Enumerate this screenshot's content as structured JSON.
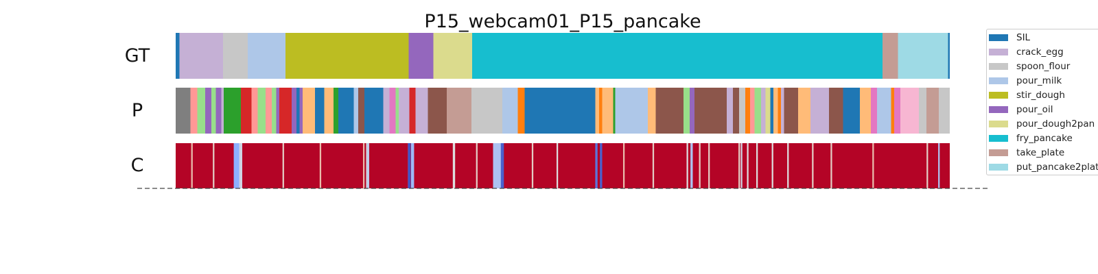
{
  "chart_data": {
    "type": "segmentation",
    "title": "P15_webcam01_P15_pancake",
    "rows": [
      "GT",
      "P",
      "C"
    ],
    "legend": [
      {
        "label": "SIL",
        "color": "#1f77b4"
      },
      {
        "label": "crack_egg",
        "color": "#c5b0d5"
      },
      {
        "label": "spoon_flour",
        "color": "#c7c7c7"
      },
      {
        "label": "pour_milk",
        "color": "#aec7e8"
      },
      {
        "label": "stir_dough",
        "color": "#bcbd22"
      },
      {
        "label": "pour_oil",
        "color": "#9467bd"
      },
      {
        "label": "pour_dough2pan",
        "color": "#dbdb8d"
      },
      {
        "label": "fry_pancake",
        "color": "#17becf"
      },
      {
        "label": "take_plate",
        "color": "#c49c94"
      },
      {
        "label": "put_pancake2plate",
        "color": "#9edae5"
      }
    ],
    "gt_segments": [
      {
        "start": 0.0,
        "end": 0.005,
        "color": "#1f77b4"
      },
      {
        "start": 0.005,
        "end": 0.061,
        "color": "#c5b0d5"
      },
      {
        "start": 0.061,
        "end": 0.093,
        "color": "#c7c7c7"
      },
      {
        "start": 0.093,
        "end": 0.142,
        "color": "#aec7e8"
      },
      {
        "start": 0.142,
        "end": 0.301,
        "color": "#bcbd22"
      },
      {
        "start": 0.301,
        "end": 0.333,
        "color": "#9467bd"
      },
      {
        "start": 0.333,
        "end": 0.383,
        "color": "#dbdb8d"
      },
      {
        "start": 0.383,
        "end": 0.913,
        "color": "#17becf"
      },
      {
        "start": 0.913,
        "end": 0.933,
        "color": "#c49c94"
      },
      {
        "start": 0.933,
        "end": 0.998,
        "color": "#9edae5"
      },
      {
        "start": 0.998,
        "end": 1.0,
        "color": "#1f77b4"
      }
    ],
    "pred_segments": [
      {
        "start": 0.0,
        "end": 0.019,
        "color": "#7f7f7f"
      },
      {
        "start": 0.019,
        "end": 0.028,
        "color": "#ff9896"
      },
      {
        "start": 0.028,
        "end": 0.038,
        "color": "#98df8a"
      },
      {
        "start": 0.038,
        "end": 0.046,
        "color": "#9467bd"
      },
      {
        "start": 0.046,
        "end": 0.052,
        "color": "#98df8a"
      },
      {
        "start": 0.052,
        "end": 0.059,
        "color": "#9467bd"
      },
      {
        "start": 0.059,
        "end": 0.062,
        "color": "#c5b0d5"
      },
      {
        "start": 0.062,
        "end": 0.084,
        "color": "#2ca02c"
      },
      {
        "start": 0.084,
        "end": 0.098,
        "color": "#d62728"
      },
      {
        "start": 0.098,
        "end": 0.106,
        "color": "#ff9896"
      },
      {
        "start": 0.106,
        "end": 0.116,
        "color": "#98df8a"
      },
      {
        "start": 0.116,
        "end": 0.124,
        "color": "#ff9896"
      },
      {
        "start": 0.124,
        "end": 0.13,
        "color": "#98df8a"
      },
      {
        "start": 0.13,
        "end": 0.134,
        "color": "#9467bd"
      },
      {
        "start": 0.134,
        "end": 0.15,
        "color": "#d62728"
      },
      {
        "start": 0.15,
        "end": 0.156,
        "color": "#9467bd"
      },
      {
        "start": 0.156,
        "end": 0.16,
        "color": "#1f77b4"
      },
      {
        "start": 0.16,
        "end": 0.164,
        "color": "#9467bd"
      },
      {
        "start": 0.164,
        "end": 0.18,
        "color": "#ffbb78"
      },
      {
        "start": 0.18,
        "end": 0.192,
        "color": "#1f77b4"
      },
      {
        "start": 0.192,
        "end": 0.204,
        "color": "#ffbb78"
      },
      {
        "start": 0.204,
        "end": 0.21,
        "color": "#2ca02c"
      },
      {
        "start": 0.21,
        "end": 0.23,
        "color": "#1f77b4"
      },
      {
        "start": 0.23,
        "end": 0.236,
        "color": "#aec7e8"
      },
      {
        "start": 0.236,
        "end": 0.244,
        "color": "#8c564b"
      },
      {
        "start": 0.244,
        "end": 0.268,
        "color": "#1f77b4"
      },
      {
        "start": 0.268,
        "end": 0.276,
        "color": "#c5b0d5"
      },
      {
        "start": 0.276,
        "end": 0.284,
        "color": "#e377c2"
      },
      {
        "start": 0.284,
        "end": 0.288,
        "color": "#98df8a"
      },
      {
        "start": 0.288,
        "end": 0.302,
        "color": "#c5b0d5"
      },
      {
        "start": 0.302,
        "end": 0.31,
        "color": "#d62728"
      },
      {
        "start": 0.31,
        "end": 0.326,
        "color": "#c5b0d5"
      },
      {
        "start": 0.326,
        "end": 0.35,
        "color": "#8c564b"
      },
      {
        "start": 0.35,
        "end": 0.382,
        "color": "#c49c94"
      },
      {
        "start": 0.382,
        "end": 0.422,
        "color": "#c7c7c7"
      },
      {
        "start": 0.422,
        "end": 0.442,
        "color": "#aec7e8"
      },
      {
        "start": 0.442,
        "end": 0.451,
        "color": "#ff7f0e"
      },
      {
        "start": 0.451,
        "end": 0.542,
        "color": "#1f77b4"
      },
      {
        "start": 0.542,
        "end": 0.547,
        "color": "#ffbb78"
      },
      {
        "start": 0.547,
        "end": 0.551,
        "color": "#ff7f0e"
      },
      {
        "start": 0.551,
        "end": 0.565,
        "color": "#ffbb78"
      },
      {
        "start": 0.565,
        "end": 0.568,
        "color": "#2ca02c"
      },
      {
        "start": 0.568,
        "end": 0.61,
        "color": "#aec7e8"
      },
      {
        "start": 0.61,
        "end": 0.62,
        "color": "#ffbb78"
      },
      {
        "start": 0.62,
        "end": 0.656,
        "color": "#8c564b"
      },
      {
        "start": 0.656,
        "end": 0.664,
        "color": "#98df8a"
      },
      {
        "start": 0.664,
        "end": 0.67,
        "color": "#9467bd"
      },
      {
        "start": 0.67,
        "end": 0.712,
        "color": "#8c564b"
      },
      {
        "start": 0.712,
        "end": 0.72,
        "color": "#c5b0d5"
      },
      {
        "start": 0.72,
        "end": 0.728,
        "color": "#8c564b"
      },
      {
        "start": 0.728,
        "end": 0.736,
        "color": "#c7c7c7"
      },
      {
        "start": 0.736,
        "end": 0.742,
        "color": "#ff7f0e"
      },
      {
        "start": 0.742,
        "end": 0.748,
        "color": "#ff9896"
      },
      {
        "start": 0.748,
        "end": 0.756,
        "color": "#98df8a"
      },
      {
        "start": 0.756,
        "end": 0.762,
        "color": "#c5b0d5"
      },
      {
        "start": 0.762,
        "end": 0.768,
        "color": "#dbdb8d"
      },
      {
        "start": 0.768,
        "end": 0.772,
        "color": "#1f77b4"
      },
      {
        "start": 0.772,
        "end": 0.778,
        "color": "#ffbb78"
      },
      {
        "start": 0.778,
        "end": 0.782,
        "color": "#ff7f0e"
      },
      {
        "start": 0.782,
        "end": 0.786,
        "color": "#c5b0d5"
      },
      {
        "start": 0.786,
        "end": 0.804,
        "color": "#8c564b"
      },
      {
        "start": 0.804,
        "end": 0.82,
        "color": "#ffbb78"
      },
      {
        "start": 0.82,
        "end": 0.844,
        "color": "#c5b0d5"
      },
      {
        "start": 0.844,
        "end": 0.862,
        "color": "#8c564b"
      },
      {
        "start": 0.862,
        "end": 0.884,
        "color": "#1f77b4"
      },
      {
        "start": 0.884,
        "end": 0.898,
        "color": "#ffbb78"
      },
      {
        "start": 0.898,
        "end": 0.906,
        "color": "#e377c2"
      },
      {
        "start": 0.906,
        "end": 0.924,
        "color": "#aec7e8"
      },
      {
        "start": 0.924,
        "end": 0.928,
        "color": "#ff7f0e"
      },
      {
        "start": 0.928,
        "end": 0.936,
        "color": "#e377c2"
      },
      {
        "start": 0.936,
        "end": 0.96,
        "color": "#f7b6d2"
      },
      {
        "start": 0.96,
        "end": 0.97,
        "color": "#c7c7c7"
      },
      {
        "start": 0.97,
        "end": 0.986,
        "color": "#c49c94"
      },
      {
        "start": 0.986,
        "end": 1.0,
        "color": "#c7c7c7"
      }
    ],
    "confidence_dips": [
      {
        "at": 0.02,
        "width": 0.002,
        "value": 0.6
      },
      {
        "at": 0.048,
        "width": 0.002,
        "value": 0.55
      },
      {
        "at": 0.075,
        "width": 0.009,
        "value": 0.25
      },
      {
        "at": 0.082,
        "width": 0.004,
        "value": 0.45
      },
      {
        "at": 0.138,
        "width": 0.002,
        "value": 0.55
      },
      {
        "at": 0.186,
        "width": 0.002,
        "value": 0.6
      },
      {
        "at": 0.242,
        "width": 0.002,
        "value": 0.6
      },
      {
        "at": 0.246,
        "width": 0.002,
        "value": 0.5
      },
      {
        "at": 0.247,
        "width": 0.003,
        "value": 0.4
      },
      {
        "at": 0.3,
        "width": 0.002,
        "value": 0.55
      },
      {
        "at": 0.304,
        "width": 0.004,
        "value": 0.3
      },
      {
        "at": 0.3,
        "width": 0.0035,
        "value": 0.02
      },
      {
        "at": 0.358,
        "width": 0.003,
        "value": 0.5
      },
      {
        "at": 0.388,
        "width": 0.002,
        "value": 0.55
      },
      {
        "at": 0.41,
        "width": 0.012,
        "value": 0.35
      },
      {
        "at": 0.42,
        "width": 0.004,
        "value": 0.05
      },
      {
        "at": 0.46,
        "width": 0.002,
        "value": 0.55
      },
      {
        "at": 0.492,
        "width": 0.002,
        "value": 0.5
      },
      {
        "at": 0.542,
        "width": 0.003,
        "value": 0.1
      },
      {
        "at": 0.548,
        "width": 0.003,
        "value": 0.05
      },
      {
        "at": 0.578,
        "width": 0.002,
        "value": 0.6
      },
      {
        "at": 0.616,
        "width": 0.002,
        "value": 0.55
      },
      {
        "at": 0.66,
        "width": 0.002,
        "value": 0.5
      },
      {
        "at": 0.665,
        "width": 0.003,
        "value": 0.35
      },
      {
        "at": 0.676,
        "width": 0.002,
        "value": 0.55
      },
      {
        "at": 0.688,
        "width": 0.002,
        "value": 0.55
      },
      {
        "at": 0.727,
        "width": 0.002,
        "value": 0.55
      },
      {
        "at": 0.73,
        "width": 0.002,
        "value": 0.45
      },
      {
        "at": 0.738,
        "width": 0.002,
        "value": 0.5
      },
      {
        "at": 0.75,
        "width": 0.002,
        "value": 0.5
      },
      {
        "at": 0.77,
        "width": 0.002,
        "value": 0.5
      },
      {
        "at": 0.79,
        "width": 0.002,
        "value": 0.5
      },
      {
        "at": 0.822,
        "width": 0.002,
        "value": 0.55
      },
      {
        "at": 0.846,
        "width": 0.002,
        "value": 0.55
      },
      {
        "at": 0.9,
        "width": 0.002,
        "value": 0.6
      },
      {
        "at": 0.97,
        "width": 0.002,
        "value": 0.55
      },
      {
        "at": 0.985,
        "width": 0.002,
        "value": 0.35
      }
    ]
  }
}
